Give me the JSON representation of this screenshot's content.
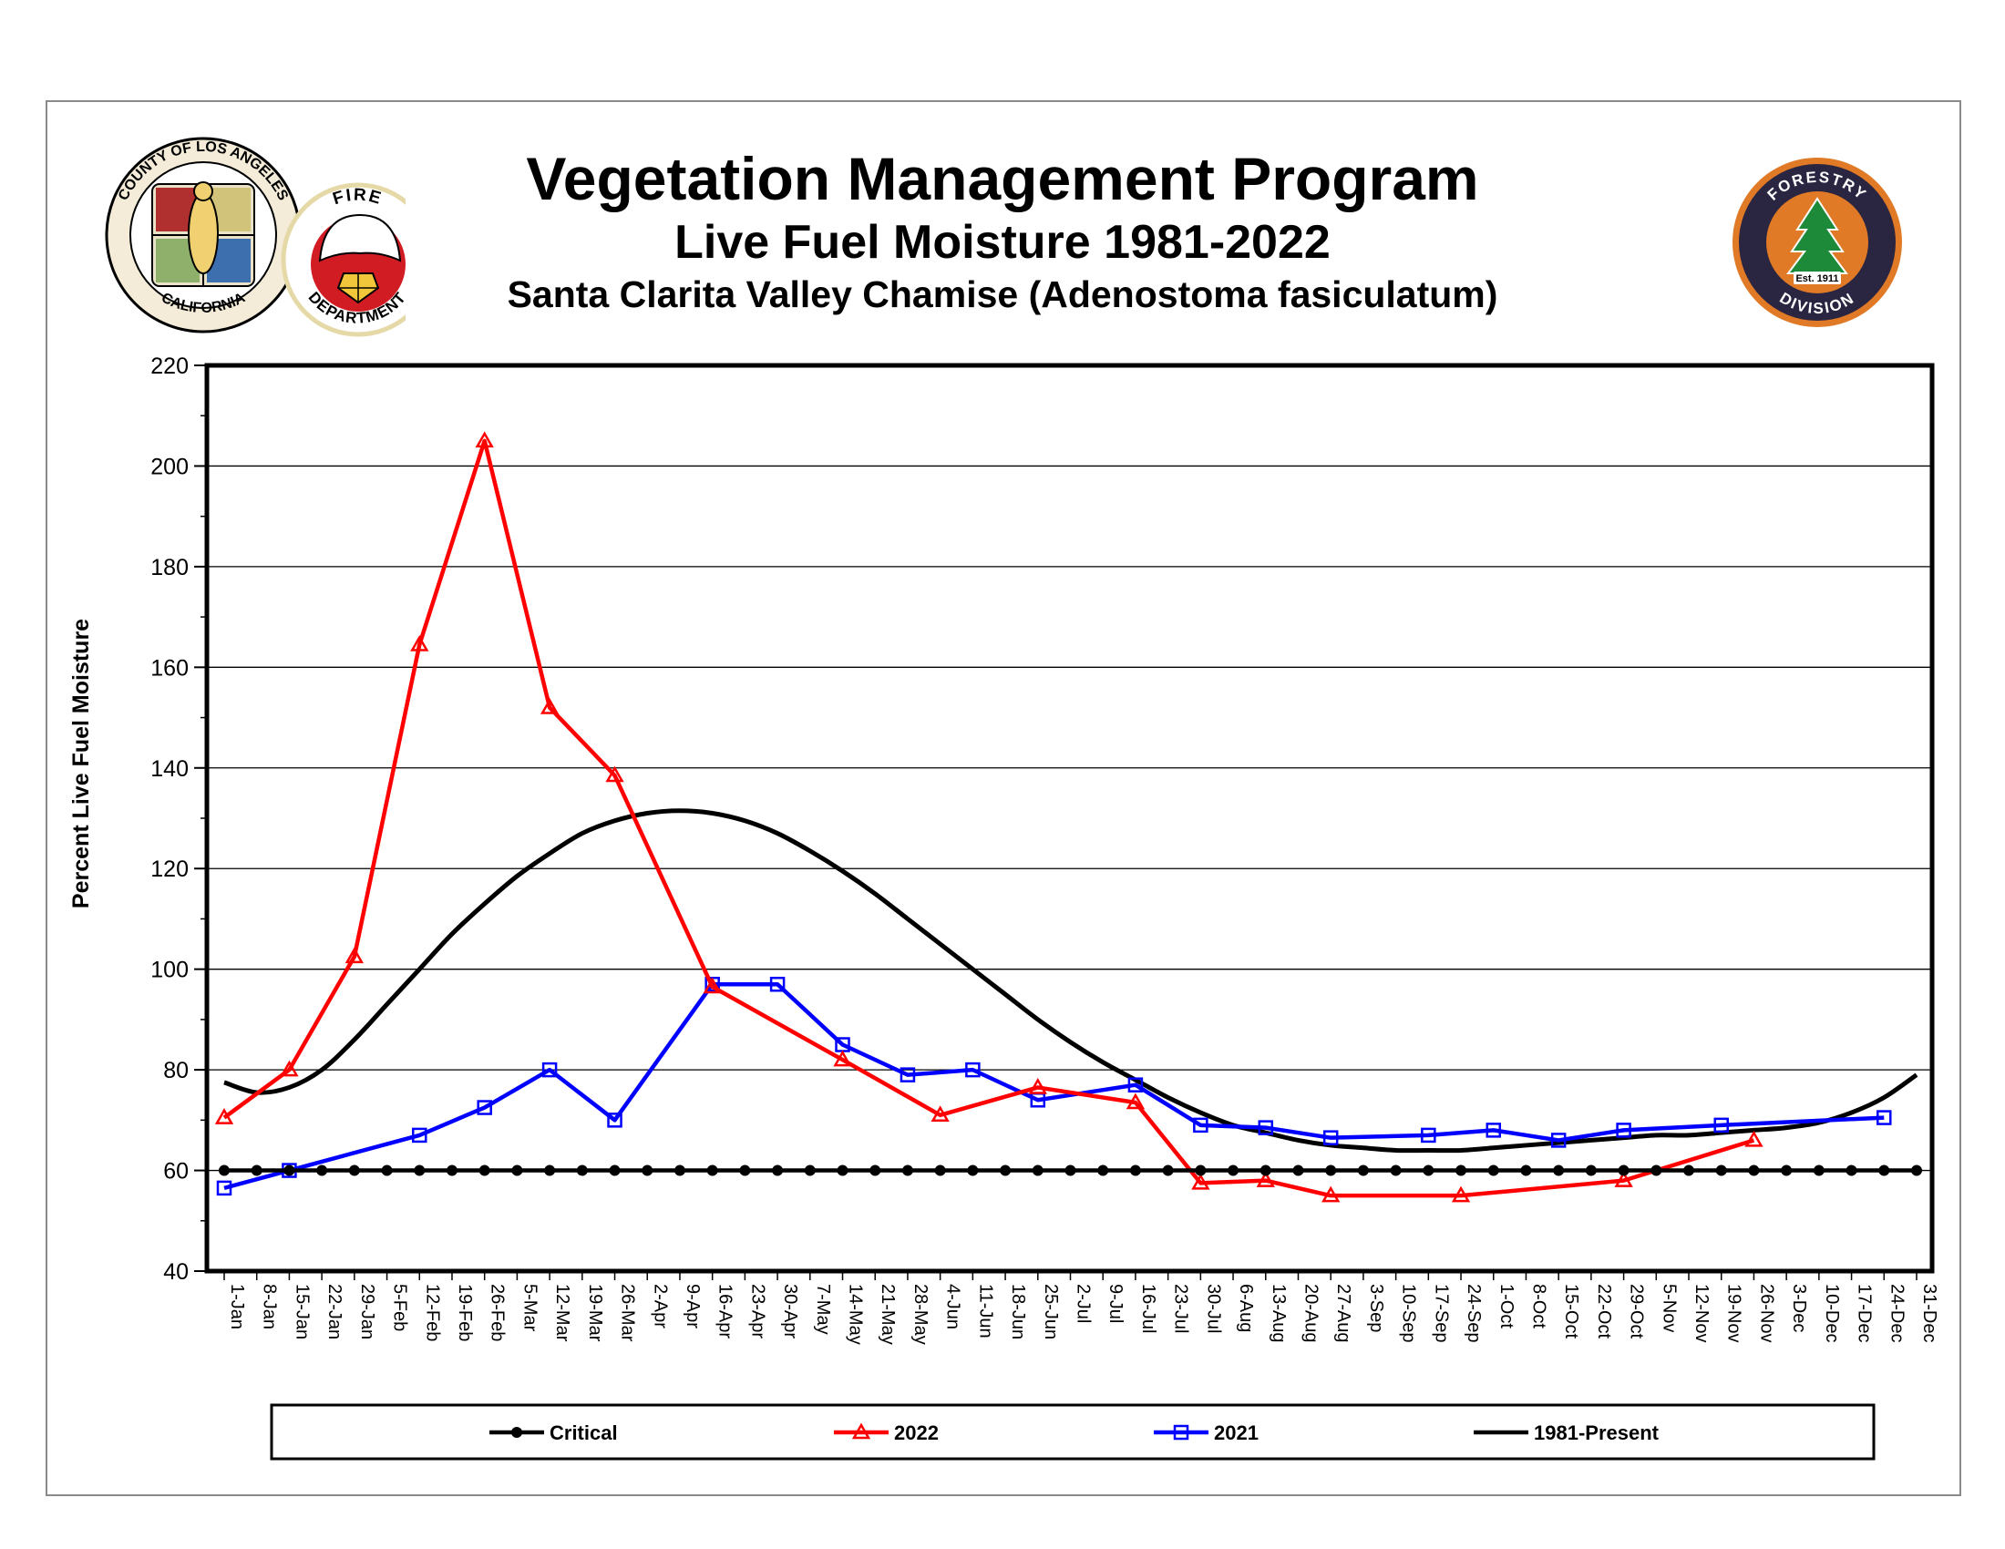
{
  "header": {
    "title": "Vegetation Management Program",
    "subtitle": "Live Fuel Moisture 1981-2022",
    "site": "Santa Clarita Valley Chamise (Adenostoma fasiculatum)"
  },
  "logos": {
    "county_seal": "COUNTY OF LOS ANGELES · CALIFORNIA",
    "fire_dept": "FIRE DEPARTMENT",
    "forestry": {
      "top": "FORESTRY",
      "est": "Est. 1911",
      "bottom": "DIVISION"
    }
  },
  "chart_data": {
    "type": "line",
    "title": "Vegetation Management Program",
    "ylabel": "Percent Live Fuel Moisture",
    "xlabel": "",
    "ylim": [
      40,
      220
    ],
    "yticks": [
      40,
      60,
      80,
      100,
      120,
      140,
      160,
      180,
      200,
      220
    ],
    "grid": true,
    "legend": "bottom",
    "categories": [
      "1-Jan",
      "8-Jan",
      "15-Jan",
      "22-Jan",
      "29-Jan",
      "5-Feb",
      "12-Feb",
      "19-Feb",
      "26-Feb",
      "5-Mar",
      "12-Mar",
      "19-Mar",
      "26-Mar",
      "2-Apr",
      "9-Apr",
      "16-Apr",
      "23-Apr",
      "30-Apr",
      "7-May",
      "14-May",
      "21-May",
      "28-May",
      "4-Jun",
      "11-Jun",
      "18-Jun",
      "25-Jun",
      "2-Jul",
      "9-Jul",
      "16-Jul",
      "23-Jul",
      "30-Jul",
      "6-Aug",
      "13-Aug",
      "20-Aug",
      "27-Aug",
      "3-Sep",
      "10-Sep",
      "17-Sep",
      "24-Sep",
      "1-Oct",
      "8-Oct",
      "15-Oct",
      "22-Oct",
      "29-Oct",
      "5-Nov",
      "12-Nov",
      "19-Nov",
      "26-Nov",
      "3-Dec",
      "10-Dec",
      "17-Dec",
      "24-Dec",
      "31-Dec"
    ],
    "series": [
      {
        "name": "Critical",
        "color": "#000000",
        "marker": "circle",
        "points": [
          [
            0,
            60
          ],
          [
            1,
            60
          ],
          [
            2,
            60
          ],
          [
            3,
            60
          ],
          [
            4,
            60
          ],
          [
            5,
            60
          ],
          [
            6,
            60
          ],
          [
            7,
            60
          ],
          [
            8,
            60
          ],
          [
            9,
            60
          ],
          [
            10,
            60
          ],
          [
            11,
            60
          ],
          [
            12,
            60
          ],
          [
            13,
            60
          ],
          [
            14,
            60
          ],
          [
            15,
            60
          ],
          [
            16,
            60
          ],
          [
            17,
            60
          ],
          [
            18,
            60
          ],
          [
            19,
            60
          ],
          [
            20,
            60
          ],
          [
            21,
            60
          ],
          [
            22,
            60
          ],
          [
            23,
            60
          ],
          [
            24,
            60
          ],
          [
            25,
            60
          ],
          [
            26,
            60
          ],
          [
            27,
            60
          ],
          [
            28,
            60
          ],
          [
            29,
            60
          ],
          [
            30,
            60
          ],
          [
            31,
            60
          ],
          [
            32,
            60
          ],
          [
            33,
            60
          ],
          [
            34,
            60
          ],
          [
            35,
            60
          ],
          [
            36,
            60
          ],
          [
            37,
            60
          ],
          [
            38,
            60
          ],
          [
            39,
            60
          ],
          [
            40,
            60
          ],
          [
            41,
            60
          ],
          [
            42,
            60
          ],
          [
            43,
            60
          ],
          [
            44,
            60
          ],
          [
            45,
            60
          ],
          [
            46,
            60
          ],
          [
            47,
            60
          ],
          [
            48,
            60
          ],
          [
            49,
            60
          ],
          [
            50,
            60
          ],
          [
            51,
            60
          ],
          [
            52,
            60
          ]
        ]
      },
      {
        "name": "2022",
        "color": "#ff0000",
        "marker": "triangle",
        "points": [
          [
            0,
            70.5
          ],
          [
            2,
            80
          ],
          [
            4,
            102.5
          ],
          [
            6,
            164.5
          ],
          [
            8,
            205
          ],
          [
            10,
            152
          ],
          [
            12,
            138.5
          ],
          [
            15,
            96.5
          ],
          [
            19,
            82
          ],
          [
            22,
            71
          ],
          [
            25,
            76.5
          ],
          [
            28,
            73.5
          ],
          [
            30,
            57.5
          ],
          [
            32,
            58
          ],
          [
            34,
            55
          ],
          [
            38,
            55
          ],
          [
            43,
            58
          ],
          [
            47,
            66
          ]
        ]
      },
      {
        "name": "2021",
        "color": "#0000ff",
        "marker": "square",
        "points": [
          [
            0,
            56.5
          ],
          [
            2,
            60
          ],
          [
            6,
            67
          ],
          [
            8,
            72.5
          ],
          [
            10,
            80
          ],
          [
            12,
            70
          ],
          [
            15,
            97
          ],
          [
            17,
            97
          ],
          [
            19,
            85
          ],
          [
            21,
            79
          ],
          [
            23,
            80
          ],
          [
            25,
            74
          ],
          [
            28,
            77
          ],
          [
            30,
            69
          ],
          [
            32,
            68.5
          ],
          [
            34,
            66.5
          ],
          [
            37,
            67
          ],
          [
            39,
            68
          ],
          [
            41,
            66
          ],
          [
            43,
            68
          ],
          [
            46,
            69
          ],
          [
            51,
            70.5
          ]
        ]
      },
      {
        "name": "1981-Present",
        "color": "#000000",
        "marker": "none",
        "smooth": true,
        "points": [
          [
            0,
            77.5
          ],
          [
            1,
            75.5
          ],
          [
            2,
            76.5
          ],
          [
            3,
            80
          ],
          [
            4,
            86
          ],
          [
            5,
            93
          ],
          [
            6,
            100
          ],
          [
            7,
            107
          ],
          [
            8,
            113
          ],
          [
            9,
            118.5
          ],
          [
            10,
            123
          ],
          [
            11,
            127
          ],
          [
            12,
            129.5
          ],
          [
            13,
            131
          ],
          [
            14,
            131.5
          ],
          [
            15,
            131
          ],
          [
            16,
            129.5
          ],
          [
            17,
            127
          ],
          [
            18,
            123.5
          ],
          [
            19,
            119.5
          ],
          [
            20,
            115
          ],
          [
            21,
            110
          ],
          [
            22,
            105
          ],
          [
            23,
            100
          ],
          [
            24,
            95
          ],
          [
            25,
            90
          ],
          [
            26,
            85.5
          ],
          [
            27,
            81.5
          ],
          [
            28,
            78
          ],
          [
            29,
            74.5
          ],
          [
            30,
            71.5
          ],
          [
            31,
            69
          ],
          [
            32,
            67.5
          ],
          [
            33,
            66
          ],
          [
            34,
            65
          ],
          [
            35,
            64.5
          ],
          [
            36,
            64
          ],
          [
            37,
            64
          ],
          [
            38,
            64
          ],
          [
            39,
            64.5
          ],
          [
            40,
            65
          ],
          [
            41,
            65.5
          ],
          [
            42,
            66
          ],
          [
            43,
            66.5
          ],
          [
            44,
            67
          ],
          [
            45,
            67
          ],
          [
            46,
            67.5
          ],
          [
            47,
            68
          ],
          [
            48,
            68.5
          ],
          [
            49,
            69.5
          ],
          [
            50,
            71.5
          ],
          [
            51,
            74.5
          ],
          [
            52,
            79
          ]
        ]
      }
    ]
  }
}
